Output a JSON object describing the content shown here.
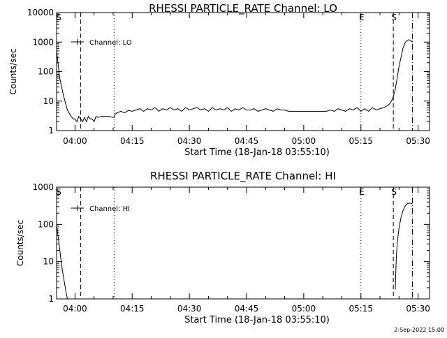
{
  "footer": {
    "timestamp": "2-Sep-2022 15:00"
  },
  "chart_data": [
    {
      "type": "line",
      "title": "RHESSI PARTICLE_RATE Channel: LO",
      "xlabel": "Start Time (18-Jan-18 03:55:10)",
      "ylabel": "Counts/sec",
      "y_scale": "log",
      "ylim": [
        1,
        10000
      ],
      "y_ticks": [
        1,
        10,
        100,
        1000,
        10000
      ],
      "y_tick_labels": [
        "1",
        "10",
        "100",
        "1000",
        "10000"
      ],
      "xlim": [
        "03:55:10",
        "05:33:00"
      ],
      "x_ticks": [
        "04:00",
        "04:15",
        "04:30",
        "04:45",
        "05:00",
        "05:15",
        "05:30"
      ],
      "legend": {
        "label": "Channel: LO",
        "position": "top-left"
      },
      "markers": [
        {
          "label": "S",
          "time": "03:55:10",
          "style": "none"
        },
        {
          "label": "",
          "time": "04:01:30",
          "style": "dashed"
        },
        {
          "label": "",
          "time": "04:10:15",
          "style": "dotted"
        },
        {
          "label": "E",
          "time": "05:15:00",
          "style": "dotted"
        },
        {
          "label": "S",
          "time": "05:23:30",
          "style": "dashed"
        },
        {
          "label": "",
          "time": "05:28:30",
          "style": "dash-dot"
        }
      ],
      "series": [
        {
          "name": "Channel: LO",
          "x": [
            "03:55:10",
            "03:56:00",
            "03:57:00",
            "03:58:00",
            "03:59:00",
            "03:59:30",
            "04:00:00",
            "04:00:30",
            "04:01:00",
            "04:01:30",
            "04:02:00",
            "04:02:30",
            "04:03:00",
            "04:03:30",
            "04:04:00",
            "04:04:30",
            "04:05:00",
            "04:05:30",
            "04:06:00",
            "04:07:00",
            "04:08:00",
            "04:09:00",
            "04:10:00",
            "04:10:15",
            "04:10:30",
            "04:11:00",
            "04:12:00",
            "04:13:00",
            "04:14:00",
            "04:15:00",
            "04:16:00",
            "04:17:00",
            "04:18:00",
            "04:19:00",
            "04:20:00",
            "04:21:00",
            "04:22:00",
            "04:23:00",
            "04:24:00",
            "04:25:00",
            "04:26:00",
            "04:27:00",
            "04:28:00",
            "04:29:00",
            "04:30:00",
            "04:31:00",
            "04:32:00",
            "04:33:00",
            "04:34:00",
            "04:35:00",
            "04:36:00",
            "04:37:00",
            "04:38:00",
            "04:39:00",
            "04:40:00",
            "04:41:00",
            "04:42:00",
            "04:43:00",
            "04:44:00",
            "04:45:00",
            "04:46:00",
            "04:47:00",
            "04:48:00",
            "04:49:00",
            "04:50:00",
            "04:51:00",
            "04:52:00",
            "04:53:00",
            "04:54:00",
            "04:55:00",
            "04:56:00",
            "04:57:00",
            "04:58:00",
            "04:59:00",
            "05:00:00",
            "05:01:00",
            "05:02:00",
            "05:03:00",
            "05:04:00",
            "05:05:00",
            "05:06:00",
            "05:07:00",
            "05:08:00",
            "05:09:00",
            "05:10:00",
            "05:11:00",
            "05:12:00",
            "05:13:00",
            "05:14:00",
            "05:15:00",
            "05:16:00",
            "05:17:00",
            "05:18:00",
            "05:19:00",
            "05:20:00",
            "05:21:00",
            "05:21:30",
            "05:22:00",
            "05:22:30",
            "05:23:00",
            "05:23:30",
            "05:24:00",
            "05:24:30",
            "05:25:00",
            "05:25:30",
            "05:26:00",
            "05:26:30",
            "05:27:00",
            "05:27:30",
            "05:28:00",
            "05:28:30"
          ],
          "values": [
            500,
            60,
            15,
            5,
            3,
            2.5,
            2.5,
            2,
            3,
            2.5,
            2,
            2.8,
            2,
            3,
            2.5,
            2.5,
            2,
            3,
            2.8,
            3,
            3,
            3,
            2.8,
            2.8,
            3.5,
            4,
            4.5,
            4,
            4.8,
            4.5,
            5,
            5.5,
            4.5,
            5.5,
            5,
            6,
            4.5,
            5.5,
            5,
            6,
            5,
            5.5,
            4.5,
            6,
            5,
            5.5,
            6,
            5,
            5.5,
            4.5,
            6,
            5,
            5.5,
            5,
            6,
            4.5,
            5.5,
            5,
            6,
            5,
            5,
            5.5,
            4.5,
            5,
            5.5,
            5,
            4.5,
            5.5,
            5,
            5,
            4.5,
            4.5,
            4.5,
            4.5,
            4.5,
            4.5,
            4.5,
            4.5,
            4.5,
            4.5,
            4.5,
            5,
            4.5,
            5.5,
            5,
            4.5,
            5.5,
            5,
            6,
            4.5,
            5.5,
            4.5,
            6,
            5,
            5.5,
            6,
            6.5,
            7,
            8,
            10,
            14,
            25,
            60,
            150,
            300,
            600,
            900,
            1100,
            1200,
            1150,
            1000
          ]
        }
      ]
    },
    {
      "type": "line",
      "title": "RHESSI PARTICLE_RATE Channel: HI",
      "xlabel": "Start Time (18-Jan-18 03:55:10)",
      "ylabel": "Counts/sec",
      "y_scale": "log",
      "ylim": [
        1,
        1000
      ],
      "y_ticks": [
        1,
        10,
        100,
        1000
      ],
      "y_tick_labels": [
        "1",
        "10",
        "100",
        "1000"
      ],
      "xlim": [
        "03:55:10",
        "05:33:00"
      ],
      "x_ticks": [
        "04:00",
        "04:15",
        "04:30",
        "04:45",
        "05:00",
        "05:15",
        "05:30"
      ],
      "legend": {
        "label": "Channel: HI",
        "position": "top-left"
      },
      "markers": [
        {
          "label": "S",
          "time": "03:55:10",
          "style": "none"
        },
        {
          "label": "",
          "time": "04:01:30",
          "style": "dashed"
        },
        {
          "label": "",
          "time": "04:10:15",
          "style": "dotted"
        },
        {
          "label": "E",
          "time": "05:15:00",
          "style": "dotted"
        },
        {
          "label": "S",
          "time": "05:23:30",
          "style": "dashed"
        },
        {
          "label": "",
          "time": "05:28:30",
          "style": "dash-dot"
        }
      ],
      "series": [
        {
          "name": "Channel: HI",
          "x": [
            "03:55:10",
            "03:55:40",
            "03:56:10",
            "03:56:40",
            "03:57:10",
            "03:57:40",
            "03:58:00"
          ],
          "values": [
            100,
            40,
            15,
            6,
            3,
            1.5,
            1
          ]
        },
        {
          "name": "Channel: HI",
          "x": [
            "05:24:00",
            "05:24:15",
            "05:24:30",
            "05:25:00",
            "05:25:30",
            "05:26:00",
            "05:26:30",
            "05:27:00",
            "05:27:30",
            "05:28:00",
            "05:28:30"
          ],
          "values": [
            1.8,
            10,
            30,
            80,
            150,
            230,
            300,
            350,
            370,
            370,
            360
          ]
        }
      ]
    }
  ]
}
